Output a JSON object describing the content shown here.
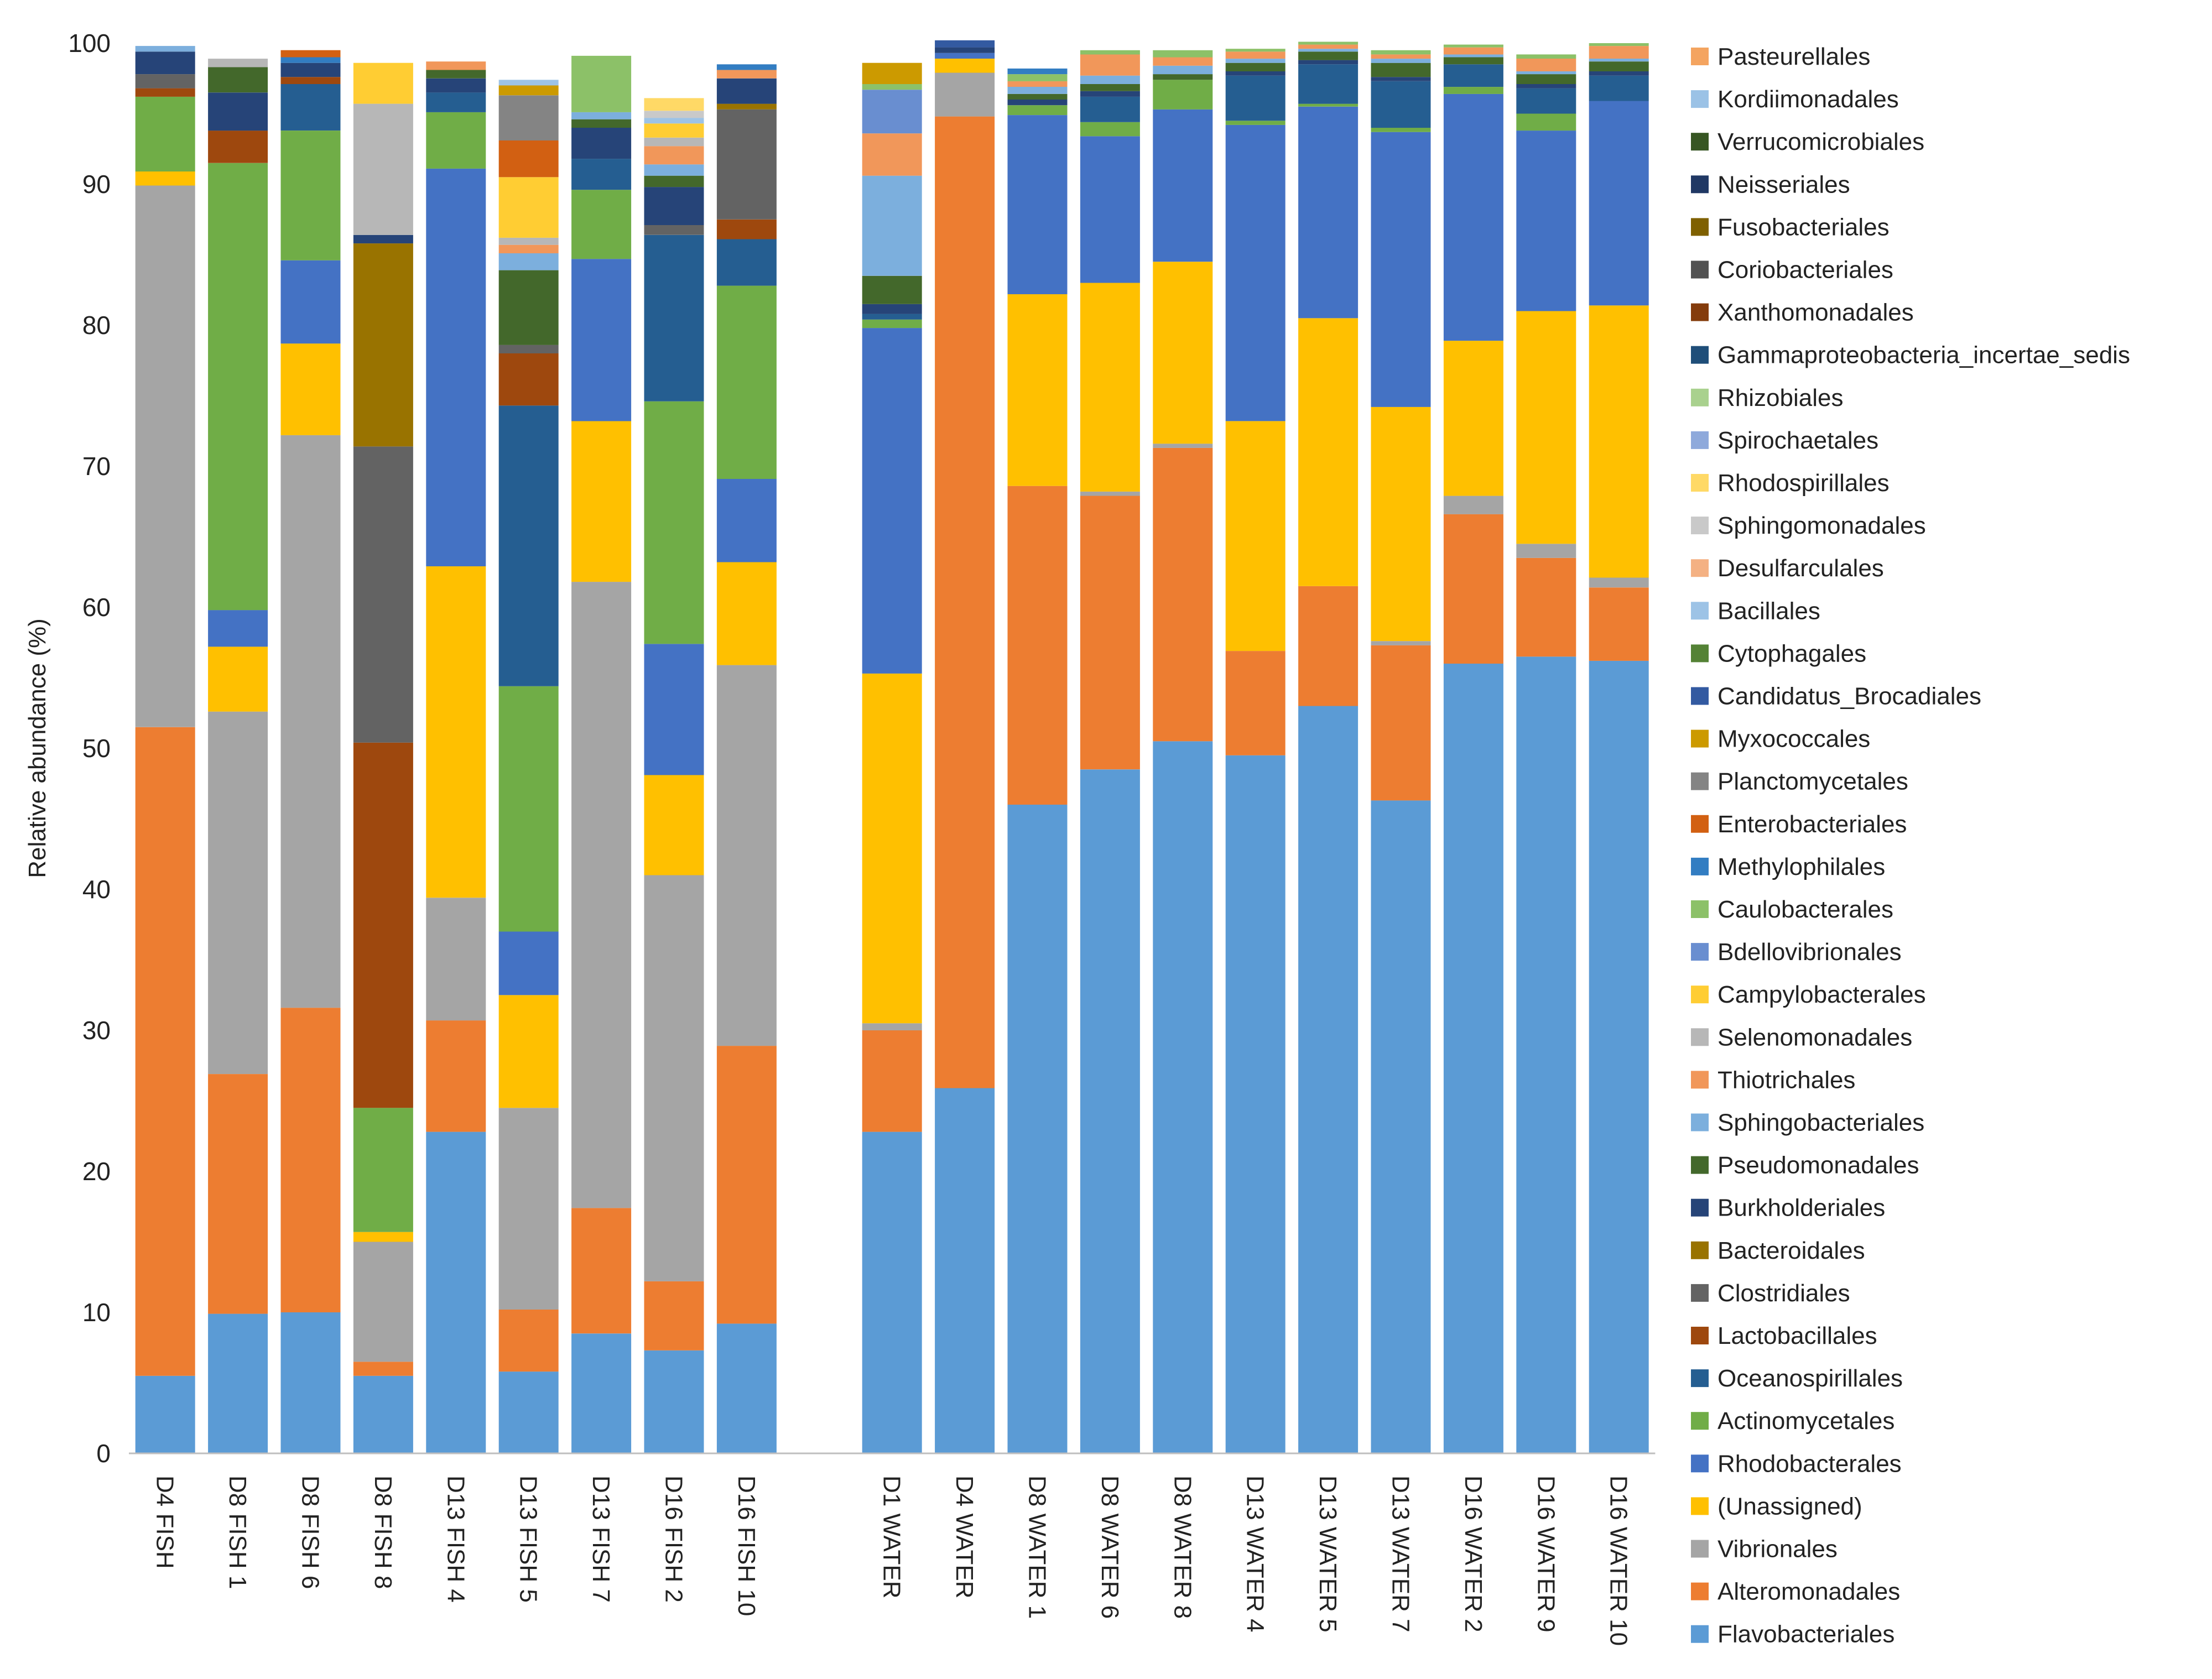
{
  "chart_data": {
    "type": "bar",
    "stacked": true,
    "title": "",
    "xlabel": "",
    "ylabel": "Relative abundance (%)",
    "ylim": [
      0,
      100
    ],
    "yticks": [
      0,
      10,
      20,
      30,
      40,
      50,
      60,
      70,
      80,
      90,
      100
    ],
    "legend_position": "right",
    "categories": [
      "D4 FISH",
      "D8 FISH 1",
      "D8 FISH 6",
      "D8 FISH 8",
      "D13 FISH 4",
      "D13 FISH 5",
      "D13 FISH 7",
      "D16 FISH 2",
      "D16 FISH 10",
      "",
      "D1 WATER",
      "D4 WATER",
      "D8 WATER 1",
      "D8 WATER 6",
      "D8 WATER 8",
      "D13 WATER 4",
      "D13 WATER 5",
      "D13 WATER 7",
      "D16 WATER 2",
      "D16 WATER 9",
      "D16 WATER 10"
    ],
    "series": [
      {
        "name": "Flavobacteriales",
        "color": "#5B9BD5",
        "values": [
          5.5,
          9.9,
          10.0,
          5.5,
          22.8,
          5.8,
          8.5,
          7.3,
          9.2,
          0,
          22.8,
          25.9,
          46.0,
          48.5,
          50.5,
          49.5,
          53.0,
          46.3,
          56.0,
          56.5,
          56.2
        ]
      },
      {
        "name": "Alteromonadales",
        "color": "#ED7D31",
        "values": [
          46.0,
          17.0,
          21.6,
          1.0,
          7.9,
          4.4,
          8.9,
          4.9,
          19.7,
          0,
          7.2,
          68.9,
          22.6,
          19.4,
          20.8,
          7.4,
          8.5,
          11.0,
          10.6,
          7.0,
          5.2
        ]
      },
      {
        "name": "Vibrionales",
        "color": "#A5A5A5",
        "values": [
          38.4,
          25.7,
          40.6,
          8.5,
          8.7,
          14.3,
          44.4,
          28.8,
          27.0,
          0,
          0.5,
          3.1,
          0,
          0.3,
          0.3,
          0,
          0,
          0.3,
          1.3,
          1.0,
          0.7
        ]
      },
      {
        "name": "(Unassigned)",
        "color": "#FFC000",
        "values": [
          1.0,
          4.6,
          6.5,
          0.7,
          23.5,
          8.0,
          11.4,
          7.1,
          7.3,
          0,
          24.8,
          1.0,
          13.6,
          14.8,
          12.9,
          16.3,
          19.0,
          16.6,
          11.0,
          16.5,
          19.3
        ]
      },
      {
        "name": "Rhodobacterales",
        "color": "#4472C4",
        "values": [
          0,
          2.6,
          5.9,
          0,
          28.2,
          4.5,
          11.5,
          9.3,
          5.9,
          0,
          24.5,
          0.4,
          12.7,
          10.4,
          10.8,
          21.0,
          15.0,
          19.5,
          17.5,
          12.8,
          14.5
        ]
      },
      {
        "name": "Actinomycetales",
        "color": "#70AD47",
        "values": [
          5.3,
          31.7,
          9.2,
          8.8,
          4.0,
          17.4,
          4.9,
          17.2,
          13.7,
          0,
          0.6,
          0,
          0.7,
          1.0,
          2.1,
          0.3,
          0.2,
          0.3,
          0.5,
          1.2,
          0
        ]
      },
      {
        "name": "Oceanospirillales",
        "color": "#255E91",
        "values": [
          0,
          0,
          3.3,
          0,
          1.4,
          19.9,
          2.2,
          11.8,
          3.3,
          0,
          0.4,
          0,
          0,
          1.8,
          0,
          3.2,
          2.8,
          3.3,
          1.6,
          1.8,
          1.8
        ]
      },
      {
        "name": "Lactobacillales",
        "color": "#9E480E",
        "values": [
          0.6,
          2.3,
          0.5,
          25.9,
          0,
          3.7,
          0,
          0,
          1.4,
          0,
          0,
          0,
          0,
          0,
          0,
          0,
          0,
          0,
          0,
          0,
          0
        ]
      },
      {
        "name": "Clostridiales",
        "color": "#636363",
        "values": [
          1.0,
          0,
          0,
          21.0,
          0,
          0.6,
          0,
          0.7,
          7.8,
          0,
          0,
          0,
          0,
          0,
          0,
          0,
          0,
          0,
          0,
          0,
          0
        ]
      },
      {
        "name": "Bacteroidales",
        "color": "#997300",
        "values": [
          0,
          0,
          0,
          14.4,
          0,
          0,
          0,
          0,
          0.4,
          0,
          0,
          0,
          0,
          0,
          0,
          0,
          0,
          0,
          0,
          0,
          0
        ]
      },
      {
        "name": "Burkholderiales",
        "color": "#264478",
        "values": [
          1.6,
          2.7,
          1.0,
          0.6,
          1.0,
          0,
          2.2,
          2.7,
          1.8,
          0,
          0.7,
          0.4,
          0.4,
          0.4,
          0,
          0.3,
          0.3,
          0.3,
          0,
          0.3,
          0.3
        ]
      },
      {
        "name": "Pseudomonadales",
        "color": "#43682B",
        "values": [
          0,
          1.8,
          0,
          0,
          0.6,
          5.3,
          0.6,
          0.8,
          0,
          0,
          2.0,
          0,
          0.4,
          0.5,
          0.4,
          0.6,
          0.6,
          1.0,
          0.5,
          0.7,
          0.7
        ]
      },
      {
        "name": "Sphingobacteriales",
        "color": "#7CAFDD",
        "values": [
          0.4,
          0,
          0,
          0,
          0,
          1.2,
          0.5,
          0.8,
          0,
          0,
          7.1,
          0,
          0.5,
          0.6,
          0.6,
          0.3,
          0.2,
          0.3,
          0.2,
          0.2,
          0.2
        ]
      },
      {
        "name": "Thiotrichales",
        "color": "#F1975A",
        "values": [
          0,
          0,
          0,
          0,
          0.6,
          0.6,
          0,
          1.3,
          0.6,
          0,
          3.0,
          0,
          0.4,
          1.5,
          0.6,
          0.5,
          0.3,
          0.3,
          0.5,
          0.9,
          0.9
        ]
      },
      {
        "name": "Selenomonadales",
        "color": "#B7B7B7",
        "values": [
          0,
          0.6,
          0,
          9.3,
          0,
          0.5,
          0,
          0.6,
          0,
          0,
          0,
          0,
          0,
          0,
          0,
          0,
          0,
          0,
          0,
          0,
          0
        ]
      },
      {
        "name": "Campylobacterales",
        "color": "#FFCD33",
        "values": [
          0,
          0,
          0,
          2.9,
          0,
          4.3,
          0,
          1.0,
          0,
          0,
          0,
          0,
          0,
          0,
          0,
          0,
          0,
          0,
          0,
          0,
          0
        ]
      },
      {
        "name": "Bdellovibrionales",
        "color": "#698ED0",
        "values": [
          0,
          0,
          0,
          0,
          0,
          0,
          0,
          0,
          0,
          0,
          3.1,
          0,
          0,
          0,
          0,
          0,
          0,
          0,
          0,
          0,
          0
        ]
      },
      {
        "name": "Caulobacterales",
        "color": "#8CC168",
        "values": [
          0,
          0,
          0,
          0,
          0,
          0,
          4.0,
          0,
          0,
          0,
          0.4,
          0,
          0.5,
          0.3,
          0.5,
          0.2,
          0.2,
          0.3,
          0.2,
          0.3,
          0.2
        ]
      },
      {
        "name": "Methylophilales",
        "color": "#327DC2",
        "values": [
          0,
          0,
          0.4,
          0,
          0,
          0,
          0,
          0,
          0.4,
          0,
          0,
          0,
          0.4,
          0,
          0,
          0,
          0,
          0,
          0,
          0,
          0
        ]
      },
      {
        "name": "Enterobacteriales",
        "color": "#D26012",
        "values": [
          0,
          0,
          0.5,
          0,
          0,
          2.6,
          0,
          0,
          0,
          0,
          0,
          0,
          0,
          0,
          0,
          0,
          0,
          0,
          0,
          0,
          0
        ]
      },
      {
        "name": "Planctomycetales",
        "color": "#848484",
        "values": [
          0,
          0,
          0,
          0,
          0,
          3.2,
          0,
          0,
          0,
          0,
          0,
          0,
          0,
          0,
          0,
          0,
          0,
          0,
          0,
          0,
          0
        ]
      },
      {
        "name": "Myxococcales",
        "color": "#CC9A00",
        "values": [
          0,
          0,
          0,
          0,
          0,
          0.7,
          0,
          0,
          0,
          0,
          1.5,
          0,
          0,
          0,
          0,
          0,
          0,
          0,
          0,
          0,
          0
        ]
      },
      {
        "name": "Candidatus_Brocadiales",
        "color": "#335AA1",
        "values": [
          0,
          0,
          0,
          0,
          0,
          0,
          0,
          0,
          0,
          0,
          0,
          0.5,
          0,
          0,
          0,
          0,
          0,
          0,
          0,
          0,
          0
        ]
      },
      {
        "name": "Cytophagales",
        "color": "#548235",
        "values": [
          0,
          0,
          0,
          0,
          0,
          0,
          0,
          0,
          0,
          0,
          0,
          0,
          0,
          0,
          0,
          0,
          0,
          0,
          0,
          0,
          0
        ]
      },
      {
        "name": "Bacillales",
        "color": "#9DC3E6",
        "values": [
          0,
          0,
          0,
          0,
          0,
          0.4,
          0,
          0.4,
          0,
          0,
          0,
          0,
          0,
          0,
          0,
          0,
          0,
          0,
          0,
          0,
          0
        ]
      },
      {
        "name": "Desulfarculales",
        "color": "#F4B183",
        "values": [
          0,
          0,
          0,
          0,
          0,
          0,
          0,
          0,
          0,
          0,
          0,
          0,
          0,
          0,
          0,
          0,
          0,
          0,
          0,
          0,
          0
        ]
      },
      {
        "name": "Sphingomonadales",
        "color": "#C9C9C9",
        "values": [
          0,
          0,
          0,
          0,
          0,
          0,
          0,
          0.5,
          0,
          0,
          0,
          0,
          0,
          0,
          0,
          0,
          0,
          0,
          0,
          0,
          0
        ]
      },
      {
        "name": "Rhodospirillales",
        "color": "#FFD966",
        "values": [
          0,
          0,
          0,
          0,
          0,
          0,
          0,
          0.9,
          0,
          0,
          0,
          0,
          0,
          0,
          0,
          0,
          0,
          0,
          0,
          0,
          0
        ]
      },
      {
        "name": "Spirochaetales",
        "color": "#8EA9DB",
        "values": [
          0,
          0,
          0,
          0,
          0,
          0,
          0,
          0,
          0,
          0,
          0,
          0,
          0,
          0,
          0,
          0,
          0,
          0,
          0,
          0,
          0
        ]
      },
      {
        "name": "Rhizobiales",
        "color": "#A9D18E",
        "values": [
          0,
          0,
          0,
          0,
          0,
          0,
          0,
          0,
          0,
          0,
          0,
          0,
          0,
          0,
          0,
          0,
          0,
          0,
          0,
          0,
          0
        ]
      },
      {
        "name": "Gammaproteobacteria_incertae_sedis",
        "color": "#1F4E79",
        "values": [
          0,
          0,
          0,
          0,
          0,
          0,
          0,
          0,
          0,
          0,
          0,
          0,
          0,
          0,
          0,
          0,
          0,
          0,
          0,
          0,
          0
        ]
      },
      {
        "name": "Xanthomonadales",
        "color": "#843C0C",
        "values": [
          0,
          0,
          0,
          0,
          0,
          0,
          0,
          0,
          0,
          0,
          0,
          0,
          0,
          0,
          0,
          0,
          0,
          0,
          0,
          0,
          0
        ]
      },
      {
        "name": "Coriobacteriales",
        "color": "#525252",
        "values": [
          0,
          0,
          0,
          0,
          0,
          0,
          0,
          0,
          0,
          0,
          0,
          0,
          0,
          0,
          0,
          0,
          0,
          0,
          0,
          0,
          0
        ]
      },
      {
        "name": "Fusobacteriales",
        "color": "#7F6000",
        "values": [
          0,
          0,
          0,
          0,
          0,
          0,
          0,
          0,
          0,
          0,
          0,
          0,
          0,
          0,
          0,
          0,
          0,
          0,
          0,
          0,
          0
        ]
      },
      {
        "name": "Neisseriales",
        "color": "#203864",
        "values": [
          0,
          0,
          0,
          0,
          0,
          0,
          0,
          0,
          0,
          0,
          0,
          0,
          0,
          0,
          0,
          0,
          0,
          0,
          0,
          0,
          0
        ]
      },
      {
        "name": "Verrucomicrobiales",
        "color": "#375623",
        "values": [
          0,
          0,
          0,
          0,
          0,
          0,
          0,
          0,
          0,
          0,
          0,
          0,
          0,
          0,
          0,
          0,
          0,
          0,
          0,
          0,
          0
        ]
      },
      {
        "name": "Kordiimonadales",
        "color": "#9BC2E6",
        "values": [
          0,
          0,
          0,
          0,
          0,
          0,
          0,
          0,
          0,
          0,
          0,
          0,
          0,
          0,
          0,
          0,
          0,
          0,
          0,
          0,
          0
        ]
      },
      {
        "name": "Pasteurellales",
        "color": "#F4A460",
        "values": [
          0,
          0,
          0,
          0,
          0,
          0,
          0,
          0,
          0,
          0,
          0,
          0,
          0,
          0,
          0,
          0,
          0,
          0,
          0,
          0,
          0
        ]
      }
    ]
  }
}
